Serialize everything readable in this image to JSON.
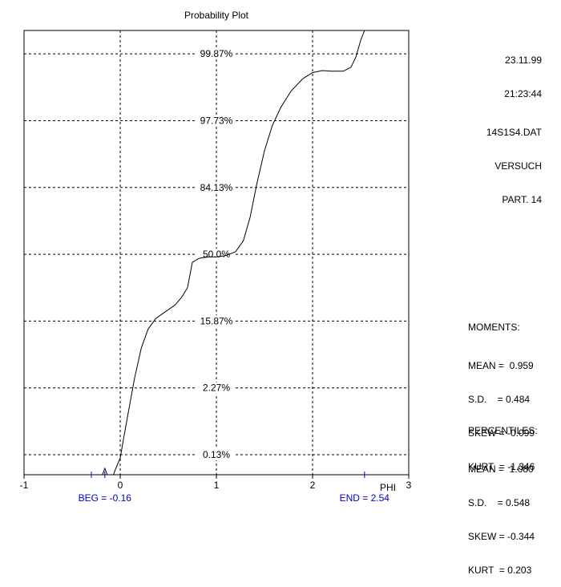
{
  "chart_data": {
    "type": "line",
    "title": "Probability Plot",
    "xlabel": "PHI",
    "xlim": [
      -1,
      3
    ],
    "x_ticks": [
      -1,
      0,
      1,
      2,
      3
    ],
    "y_gridlines": [
      "0.13%",
      "2.27%",
      "15.87%",
      "50.0%",
      "84.13%",
      "97.73%",
      "99.87%"
    ],
    "y_sigma": [
      -3,
      -2,
      -1,
      0,
      1,
      2,
      3
    ],
    "ylim_sigma": [
      -3.3,
      3.35
    ],
    "grid": true,
    "series": [
      {
        "points": [
          [
            -0.07,
            -3.3
          ],
          [
            -0.05,
            -3.22
          ],
          [
            0.0,
            -3.05
          ],
          [
            0.03,
            -2.8
          ],
          [
            0.08,
            -2.4
          ],
          [
            0.15,
            -1.85
          ],
          [
            0.22,
            -1.4
          ],
          [
            0.29,
            -1.12
          ],
          [
            0.37,
            -0.96
          ],
          [
            0.47,
            -0.86
          ],
          [
            0.57,
            -0.76
          ],
          [
            0.64,
            -0.64
          ],
          [
            0.7,
            -0.5
          ],
          [
            0.75,
            -0.12
          ],
          [
            0.82,
            -0.06
          ],
          [
            0.92,
            -0.04
          ],
          [
            1.0,
            -0.04
          ],
          [
            1.1,
            -0.02
          ],
          [
            1.2,
            0.04
          ],
          [
            1.28,
            0.2
          ],
          [
            1.35,
            0.55
          ],
          [
            1.42,
            1.05
          ],
          [
            1.5,
            1.55
          ],
          [
            1.58,
            1.92
          ],
          [
            1.67,
            2.2
          ],
          [
            1.78,
            2.45
          ],
          [
            1.9,
            2.63
          ],
          [
            2.0,
            2.72
          ],
          [
            2.1,
            2.75
          ],
          [
            2.2,
            2.74
          ],
          [
            2.32,
            2.74
          ],
          [
            2.4,
            2.8
          ],
          [
            2.45,
            2.95
          ],
          [
            2.5,
            3.2
          ],
          [
            2.54,
            3.35
          ]
        ]
      }
    ],
    "markers": [
      {
        "label": "BEG = -0.16",
        "x": -0.16
      },
      {
        "label": "END = 2.54",
        "x": 2.54
      }
    ],
    "extra_tick_x": -0.16
  },
  "info": {
    "date": "23.11.99",
    "time": "21:23:44",
    "file": "14S1S4.DAT",
    "name": "VERSUCH",
    "part": "PART. 14"
  },
  "moments": {
    "heading": "MOMENTS:",
    "rows": [
      "MEAN =  0.959",
      "S.D.    = 0.484",
      "SKEW = -0.099",
      "KURT  = -1.346"
    ]
  },
  "percentiles": {
    "heading": "PERCENTILES:",
    "rows": [
      "MEAN =  1.080",
      "S.D.    = 0.548",
      "SKEW = -0.344",
      "KURT  = 0.203"
    ]
  },
  "colors": {
    "axis": "#000000",
    "grid": "#000000",
    "marker": "#0000cc",
    "line": "#000000"
  }
}
